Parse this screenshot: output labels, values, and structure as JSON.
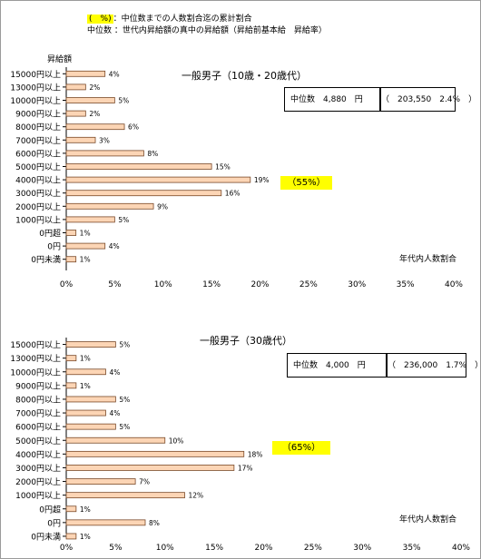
{
  "legend": {
    "swatch_label": "(　%)",
    "swatch_desc": "：中位数までの人数割合迄の累計割合",
    "median_term": "中位数",
    "median_desc": "：世代内昇給額の真中の昇給額（昇給前基本給　昇給率）"
  },
  "colors": {
    "bar_fill": "#fcd5b5",
    "bar_stroke": "#7a4a2a",
    "highlight": "#ffff00"
  },
  "chart_data": [
    {
      "type": "bar",
      "orientation": "horizontal",
      "title": "一般男子（10歳・20歳代）",
      "ylabel": "昇給額",
      "xlabel": "年代内人数割合",
      "categories": [
        "15000円以上",
        "13000円以上",
        "10000円以上",
        "9000円以上",
        "8000円以上",
        "7000円以上",
        "6000円以上",
        "5000円以上",
        "4000円以上",
        "3000円以上",
        "2000円以上",
        "1000円以上",
        "0円超",
        "0円",
        "0円未満"
      ],
      "values": [
        4,
        2,
        5,
        2,
        6,
        3,
        8,
        15,
        19,
        16,
        9,
        5,
        1,
        4,
        1
      ],
      "value_labels": [
        "4%",
        "2%",
        "5%",
        "2%",
        "6%",
        "3%",
        "8%",
        "15%",
        "19%",
        "16%",
        "9%",
        "5%",
        "1%",
        "4%",
        "1%"
      ],
      "xlim": [
        0,
        40
      ],
      "xticks": [
        "0%",
        "5%",
        "10%",
        "15%",
        "20%",
        "25%",
        "30%",
        "35%",
        "40%"
      ],
      "median_box": {
        "label": "中位数　4,880　円",
        "detail": "（　203,550　2.4%　）"
      },
      "cumulative_label": "（55%）",
      "grid": false
    },
    {
      "type": "bar",
      "orientation": "horizontal",
      "title": "一般男子（30歳代）",
      "xlabel": "年代内人数割合",
      "categories": [
        "15000円以上",
        "13000円以上",
        "10000円以上",
        "9000円以上",
        "8000円以上",
        "7000円以上",
        "6000円以上",
        "5000円以上",
        "4000円以上",
        "3000円以上",
        "2000円以上",
        "1000円以上",
        "0円超",
        "0円",
        "0円未満"
      ],
      "values": [
        5,
        1,
        4,
        1,
        5,
        4,
        5,
        10,
        18,
        17,
        7,
        12,
        1,
        8,
        1
      ],
      "value_labels": [
        "5%",
        "1%",
        "4%",
        "1%",
        "5%",
        "4%",
        "5%",
        "10%",
        "18%",
        "17%",
        "7%",
        "12%",
        "1%",
        "8%",
        "1%"
      ],
      "xlim": [
        0,
        40
      ],
      "xticks": [
        "0%",
        "5%",
        "10%",
        "15%",
        "20%",
        "25%",
        "30%",
        "35%",
        "40%"
      ],
      "median_box": {
        "label": "中位数　4,000　円",
        "detail": "（　236,000　1.7%　）"
      },
      "cumulative_label": "（65%）",
      "grid": false
    }
  ]
}
